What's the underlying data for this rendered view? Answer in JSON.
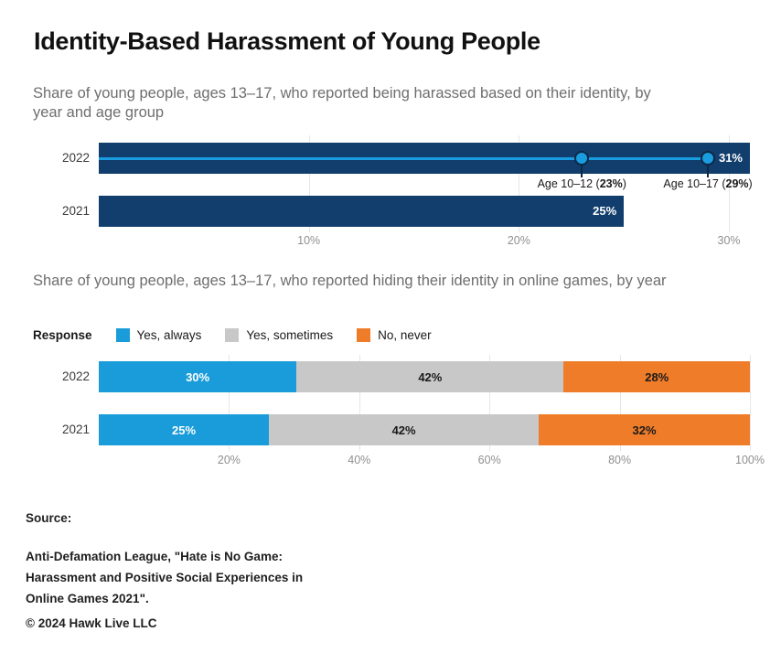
{
  "header": {
    "title": "Identity-Based Harassment of Young People"
  },
  "chart_data": [
    {
      "type": "bar",
      "title": "Share of young people, ages 13–17, who reported being harassed based on their identity, by year and age group",
      "categories": [
        "2022",
        "2021"
      ],
      "values": [
        31,
        25
      ],
      "value_labels": [
        "31%",
        "25%"
      ],
      "bar_color": "#123e6d",
      "annotation_line_color": "#199ce0",
      "annotations": [
        {
          "value": 23,
          "prefix": "Age 10–12 (",
          "bold": "23%",
          "suffix": ")"
        },
        {
          "value": 29,
          "prefix": "Age 10–17 (",
          "bold": "29%",
          "suffix": ")"
        }
      ],
      "xticks": [
        10,
        20,
        30
      ],
      "xtick_labels": [
        "10%",
        "20%",
        "30%"
      ],
      "xlim": [
        0,
        31
      ],
      "grid": true,
      "legend_position": "none"
    },
    {
      "type": "stacked-bar",
      "title": "Share of young people, ages 13–17, who reported hiding their identity in online games, by year",
      "legend_title": "Response",
      "legend_position": "top-left",
      "categories": [
        "2022",
        "2021"
      ],
      "series": [
        {
          "name": "Yes, always",
          "color": "#199cd9",
          "label_color": "#ffffff",
          "values": [
            30,
            25
          ]
        },
        {
          "name": "Yes, sometimes",
          "color": "#c8c8c8",
          "label_color": "#1a1a1a",
          "values": [
            42,
            42
          ]
        },
        {
          "name": "No, never",
          "color": "#ef7c29",
          "label_color": "#1a1a1a",
          "values": [
            28,
            32
          ]
        }
      ],
      "xticks": [
        20,
        40,
        60,
        80,
        100
      ],
      "xtick_labels": [
        "20%",
        "40%",
        "60%",
        "80%",
        "100%"
      ],
      "xlim": [
        0,
        100
      ],
      "grid": true
    }
  ],
  "footer": {
    "source_label": "Source:",
    "source_lines": [
      "Anti-Defamation League, \"Hate is No Game:",
      "Harassment and Positive Social Experiences in",
      "Online Games 2021\"."
    ],
    "copyright": "© 2024 Hawk Live LLC"
  }
}
